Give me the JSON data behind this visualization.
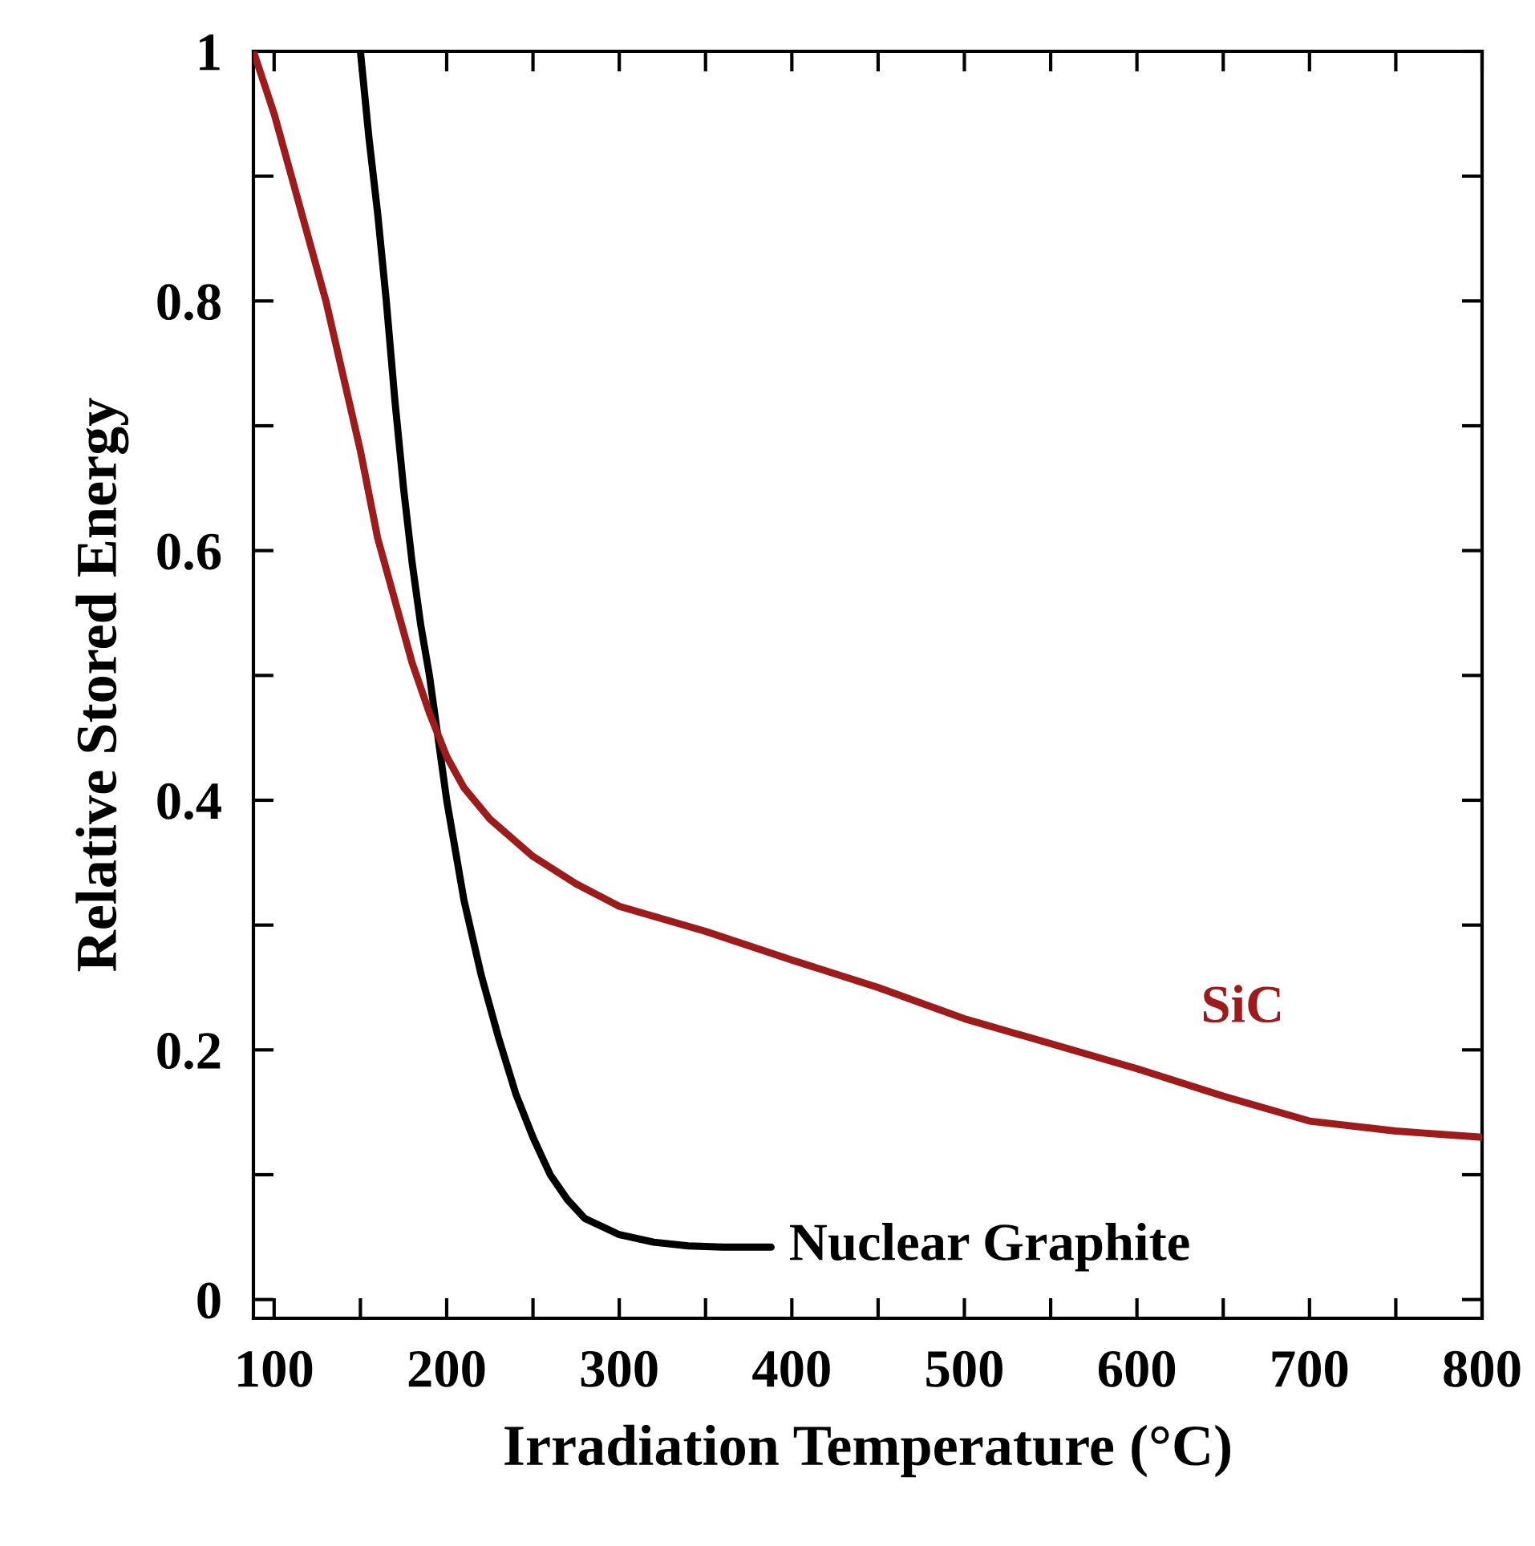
{
  "chart_data": {
    "type": "line",
    "xlabel": "Irradiation Temperature (°C)",
    "ylabel": "Relative Stored Energy",
    "series": [
      {
        "name": "Nuclear Graphite",
        "color": "#000000",
        "x": [
          150,
          155,
          160,
          165,
          170,
          175,
          180,
          185,
          190,
          195,
          200,
          210,
          220,
          230,
          240,
          250,
          260,
          270,
          280,
          300,
          320,
          340,
          360,
          388
        ],
        "values": [
          1.0,
          0.93,
          0.87,
          0.8,
          0.72,
          0.65,
          0.59,
          0.54,
          0.5,
          0.45,
          0.4,
          0.32,
          0.26,
          0.21,
          0.165,
          0.13,
          0.1,
          0.08,
          0.065,
          0.052,
          0.046,
          0.043,
          0.042,
          0.042
        ]
      },
      {
        "name": "SiC",
        "color": "#9e1b1b",
        "x": [
          88,
          100,
          110,
          120,
          130,
          140,
          150,
          160,
          170,
          180,
          190,
          200,
          210,
          225,
          250,
          275,
          300,
          350,
          400,
          450,
          500,
          550,
          600,
          650,
          700,
          750,
          800
        ],
        "values": [
          1.0,
          0.95,
          0.9,
          0.85,
          0.8,
          0.74,
          0.68,
          0.61,
          0.56,
          0.51,
          0.47,
          0.435,
          0.41,
          0.385,
          0.355,
          0.333,
          0.315,
          0.295,
          0.272,
          0.25,
          0.225,
          0.205,
          0.185,
          0.163,
          0.143,
          0.135,
          0.13
        ]
      }
    ],
    "xlim": [
      88,
      800
    ],
    "ylim": [
      -0.015,
      1
    ],
    "xticks": [
      100,
      {
        "value": 150,
        "label": null
      },
      200,
      {
        "value": 250,
        "label": null
      },
      300,
      {
        "value": 350,
        "label": null
      },
      400,
      {
        "value": 450,
        "label": null
      },
      500,
      {
        "value": 550,
        "label": null
      },
      600,
      {
        "value": 650,
        "label": null
      },
      700,
      {
        "value": 750,
        "label": null
      },
      800
    ],
    "yticks": [
      0,
      {
        "value": 0.1,
        "label": null
      },
      0.2,
      {
        "value": 0.3,
        "label": null
      },
      0.4,
      {
        "value": 0.5,
        "label": null
      },
      0.6,
      {
        "value": 0.7,
        "label": null
      },
      0.8,
      {
        "value": 0.9,
        "label": null
      },
      1
    ],
    "grid": false,
    "legend": false,
    "marker": "none",
    "line_style": "solid"
  }
}
